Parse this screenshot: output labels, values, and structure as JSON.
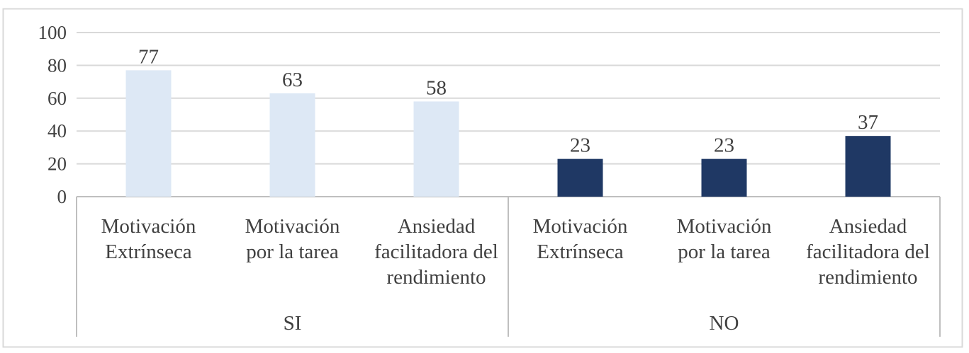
{
  "chart_data": {
    "type": "bar",
    "title": "",
    "xlabel": "",
    "ylabel": "",
    "ylim": [
      0,
      100
    ],
    "yticks": [
      0,
      20,
      40,
      60,
      80,
      100
    ],
    "grid": true,
    "legend": "none",
    "groups": [
      {
        "name": "SI",
        "color": "#dde8f5",
        "categories": [
          [
            "Motivación",
            "Extrínseca"
          ],
          [
            "Motivación",
            "por la tarea"
          ],
          [
            "Ansiedad",
            "facilitadora del",
            "rendimiento"
          ]
        ],
        "values": [
          77,
          63,
          58
        ]
      },
      {
        "name": "NO",
        "color": "#1f3864",
        "categories": [
          [
            "Motivación",
            "Extrínseca"
          ],
          [
            "Motivación",
            "por la tarea"
          ],
          [
            "Ansiedad",
            "facilitadora del",
            "rendimiento"
          ]
        ],
        "values": [
          23,
          23,
          37
        ]
      }
    ]
  },
  "colors": {
    "grid": "#d9d9d9",
    "axis": "#bfbfbf",
    "text": "#404040",
    "frame": "#d9d9d9"
  }
}
